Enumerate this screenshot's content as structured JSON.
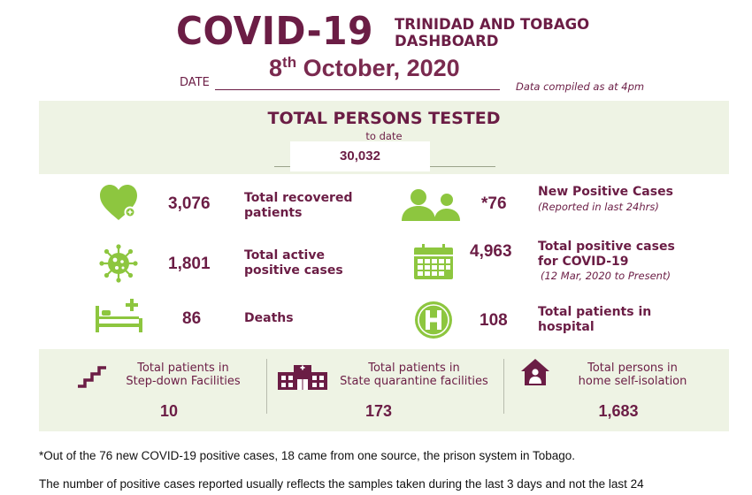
{
  "header": {
    "title": "COVID-19",
    "subtitle_line1": "TRINIDAD AND TOBAGO",
    "subtitle_line2": "DASHBOARD",
    "date_label": "DATE",
    "date_day": "8",
    "date_suffix": "th",
    "date_rest": " October, 2020",
    "compiled_note": "Data compiled as at 4pm"
  },
  "tested": {
    "title": "TOTAL PERSONS TESTED",
    "subtitle": "to date",
    "value": "30,032"
  },
  "stats": {
    "recovered": {
      "value": "3,076",
      "label1": "Total recovered",
      "label2": "patients",
      "icon": "heart-icon"
    },
    "active": {
      "value": "1,801",
      "label1": "Total active",
      "label2": "positive cases",
      "icon": "virus-icon"
    },
    "deaths": {
      "value": "86",
      "label1": "Deaths",
      "icon": "hospital-bed-icon"
    },
    "new_cases": {
      "value": "*76",
      "label1": "New Positive Cases",
      "note": "(Reported in last 24hrs)",
      "icon": "people-icon"
    },
    "total_positive": {
      "value": "4,963",
      "label1": "Total positive cases",
      "label2": "for COVID-19",
      "note": "(12 Mar, 2020 to Present)",
      "icon": "calendar-icon"
    },
    "hospital": {
      "value": "108",
      "label1": "Total patients in",
      "label2": "hospital",
      "icon": "hospital-h-icon"
    }
  },
  "facilities": {
    "stepdown": {
      "label1": "Total patients in",
      "label2": "Step-down Facilities",
      "value": "10",
      "icon": "stairs-icon"
    },
    "quarantine": {
      "label1": "Total patients in",
      "label2": "State quarantine facilities",
      "value": "173",
      "icon": "building-icon"
    },
    "home": {
      "label1": "Total persons in",
      "label2": "home self-isolation",
      "value": "1,683",
      "icon": "home-icon"
    }
  },
  "colors": {
    "primary": "#6b1d45",
    "accent_green": "#8dc63f",
    "band": "#eef3e4"
  },
  "footnotes": {
    "line1": "*Out of the 76 new COVID-19 positive cases, 18 came from one source, the prison system in Tobago.",
    "line2": "The number of positive cases reported usually reflects the samples taken during the last 3 days and not the last 24"
  }
}
